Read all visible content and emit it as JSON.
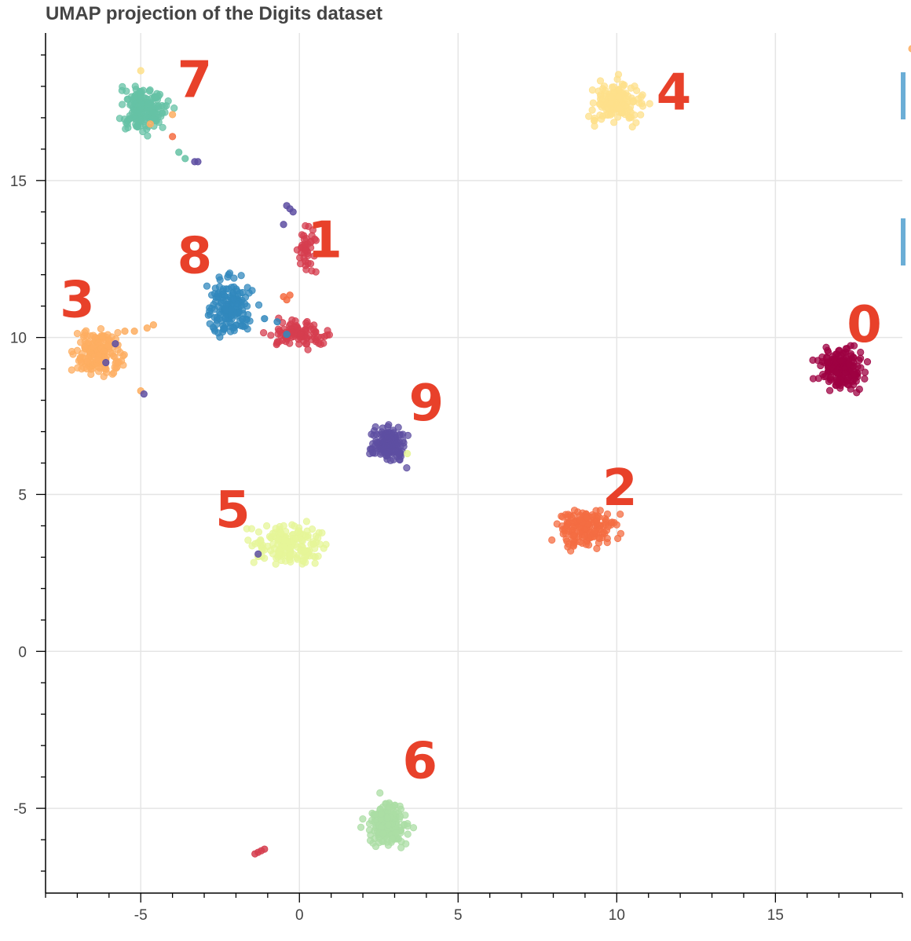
{
  "chart_data": {
    "type": "scatter",
    "title": "UMAP projection of the Digits dataset",
    "xlabel": "",
    "ylabel": "",
    "xlim": [
      -8,
      19
    ],
    "ylim": [
      -7.7,
      19.7
    ],
    "grid": true,
    "x_ticks": [
      -5,
      0,
      5,
      10,
      15
    ],
    "y_ticks": [
      -5,
      0,
      5,
      10,
      15
    ],
    "clusters": [
      {
        "digit": "0",
        "color": "#9e0142",
        "center": [
          17.1,
          9.0
        ],
        "spread": [
          0.35,
          0.3
        ],
        "n": 170,
        "label_pos": [
          17.8,
          10.3
        ]
      },
      {
        "digit": "1",
        "color": "#d53e4f",
        "center": [
          0.0,
          10.1
        ],
        "spread": [
          0.45,
          0.2
        ],
        "n": 90,
        "label_pos": [
          0.8,
          13.0
        ]
      },
      {
        "digit": "1",
        "color": "#d53e4f",
        "center": [
          0.2,
          12.8
        ],
        "spread": [
          0.15,
          0.35
        ],
        "n": 40,
        "label_pos": null
      },
      {
        "digit": "2",
        "color": "#f46d43",
        "center": [
          9.0,
          3.9
        ],
        "spread": [
          0.45,
          0.3
        ],
        "n": 170,
        "label_pos": [
          10.1,
          5.1
        ]
      },
      {
        "digit": "3",
        "color": "#fdae61",
        "center": [
          -6.3,
          9.5
        ],
        "spread": [
          0.35,
          0.4
        ],
        "n": 160,
        "label_pos": [
          -7.0,
          11.1
        ]
      },
      {
        "digit": "4",
        "color": "#fee08b",
        "center": [
          10.0,
          17.5
        ],
        "spread": [
          0.4,
          0.3
        ],
        "n": 170,
        "label_pos": [
          11.8,
          17.7
        ]
      },
      {
        "digit": "5",
        "color": "#e6f598",
        "center": [
          -0.3,
          3.4
        ],
        "spread": [
          0.55,
          0.3
        ],
        "n": 160,
        "label_pos": [
          -2.1,
          4.4
        ]
      },
      {
        "digit": "6",
        "color": "#abdda4",
        "center": [
          2.75,
          -5.5
        ],
        "spread": [
          0.3,
          0.35
        ],
        "n": 170,
        "label_pos": [
          3.8,
          -3.6
        ]
      },
      {
        "digit": "7",
        "color": "#66c2a5",
        "center": [
          -4.9,
          17.3
        ],
        "spread": [
          0.35,
          0.35
        ],
        "n": 170,
        "label_pos": [
          -3.3,
          18.1
        ]
      },
      {
        "digit": "8",
        "color": "#3288bd",
        "center": [
          -2.2,
          11.0
        ],
        "spread": [
          0.35,
          0.45
        ],
        "n": 160,
        "label_pos": [
          -3.3,
          12.5
        ]
      },
      {
        "digit": "9",
        "color": "#5e4fa2",
        "center": [
          2.8,
          6.6
        ],
        "spread": [
          0.25,
          0.25
        ],
        "n": 160,
        "label_pos": [
          4.0,
          7.8
        ]
      }
    ],
    "stray_points": [
      {
        "x": -5.0,
        "y": 18.5,
        "color": "#fee08b"
      },
      {
        "x": -4.0,
        "y": 16.4,
        "color": "#f46d43"
      },
      {
        "x": -4.0,
        "y": 17.1,
        "color": "#fdae61"
      },
      {
        "x": -4.7,
        "y": 16.8,
        "color": "#fdae61"
      },
      {
        "x": -3.8,
        "y": 15.9,
        "color": "#66c2a5"
      },
      {
        "x": -3.6,
        "y": 15.7,
        "color": "#66c2a5"
      },
      {
        "x": -3.3,
        "y": 15.6,
        "color": "#5e4fa2"
      },
      {
        "x": -3.2,
        "y": 15.6,
        "color": "#5e4fa2"
      },
      {
        "x": -0.4,
        "y": 14.2,
        "color": "#5e4fa2"
      },
      {
        "x": -0.3,
        "y": 14.1,
        "color": "#5e4fa2"
      },
      {
        "x": -0.2,
        "y": 14.0,
        "color": "#5e4fa2"
      },
      {
        "x": -0.5,
        "y": 13.6,
        "color": "#5e4fa2"
      },
      {
        "x": -0.5,
        "y": 11.3,
        "color": "#f46d43"
      },
      {
        "x": -0.3,
        "y": 11.35,
        "color": "#f46d43"
      },
      {
        "x": -0.4,
        "y": 11.2,
        "color": "#f46d43"
      },
      {
        "x": -1.1,
        "y": 10.6,
        "color": "#3288bd"
      },
      {
        "x": -0.7,
        "y": 10.5,
        "color": "#3288bd"
      },
      {
        "x": -0.4,
        "y": 10.1,
        "color": "#3288bd"
      },
      {
        "x": -5.8,
        "y": 9.8,
        "color": "#5e4fa2"
      },
      {
        "x": -5.5,
        "y": 10.2,
        "color": "#fdae61"
      },
      {
        "x": -5.2,
        "y": 10.2,
        "color": "#fdae61"
      },
      {
        "x": -4.8,
        "y": 10.3,
        "color": "#fdae61"
      },
      {
        "x": -4.6,
        "y": 10.4,
        "color": "#fdae61"
      },
      {
        "x": -5.0,
        "y": 8.3,
        "color": "#fdae61"
      },
      {
        "x": -4.9,
        "y": 8.2,
        "color": "#5e4fa2"
      },
      {
        "x": -6.1,
        "y": 9.2,
        "color": "#5e4fa2"
      },
      {
        "x": -1.3,
        "y": 3.1,
        "color": "#5e4fa2"
      },
      {
        "x": -1.4,
        "y": -6.45,
        "color": "#d53e4f"
      },
      {
        "x": -1.3,
        "y": -6.4,
        "color": "#d53e4f"
      },
      {
        "x": -1.2,
        "y": -6.35,
        "color": "#d53e4f"
      },
      {
        "x": -1.1,
        "y": -6.3,
        "color": "#d53e4f"
      },
      {
        "x": 3.4,
        "y": 6.3,
        "color": "#e6f598"
      },
      {
        "x": 19.3,
        "y": 19.2,
        "color": "#fdae61"
      }
    ]
  }
}
